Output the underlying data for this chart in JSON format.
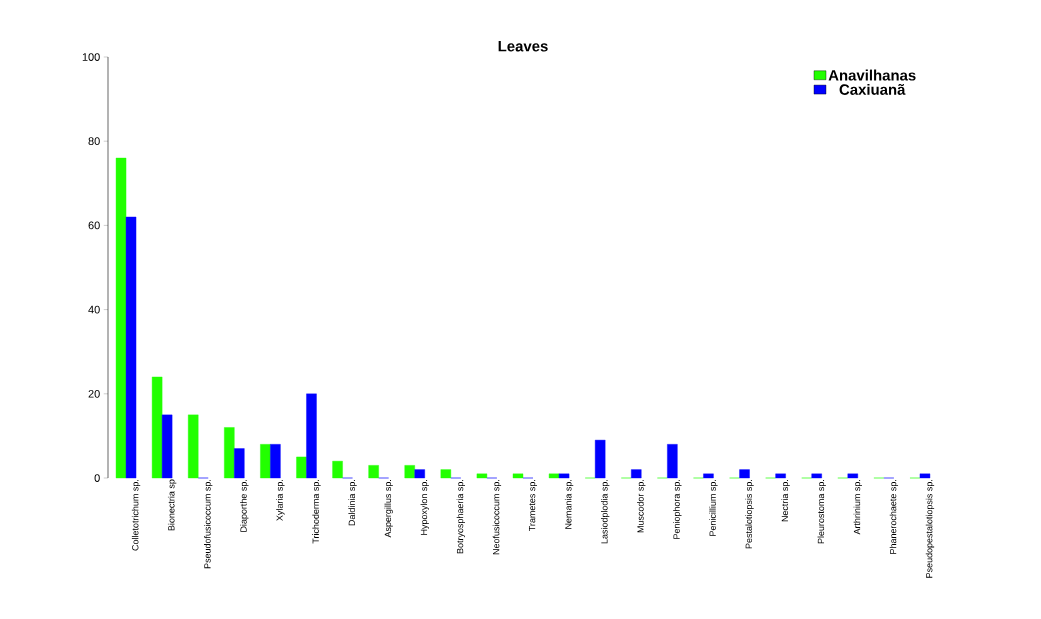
{
  "chart_data": {
    "type": "bar",
    "title": "Leaves",
    "categories": [
      "Colletotrichum sp.",
      "Bionectria sp",
      "Pseudofusicoccum sp.",
      "Diaporthe sp.",
      "Xylaria sp.",
      "Trichoderma sp.",
      "Daldinia sp.",
      "Aspergillus sp.",
      "Hypoxylon sp.",
      "Botryosphaeria sp.",
      "Neofusicoccum sp.",
      "Trametes sp.",
      "Nemania sp.",
      "Lasiodplodia sp.",
      "Muscodor sp.",
      "Peniophora sp.",
      "Penicillium sp.",
      "Pestalotiopsis sp.",
      "Nectria sp.",
      "Pleurostoma sp.",
      "Arthrinium sp.",
      "Phanerochaete sp.",
      "Pseudopestalotiopsis sp."
    ],
    "series": [
      {
        "name": "Anavilhanas",
        "color": "#22ff00",
        "values": [
          76,
          24,
          15,
          12,
          8,
          5,
          4,
          3,
          3,
          2,
          1,
          1,
          1,
          0,
          0,
          0,
          0,
          0,
          0,
          0,
          0,
          0,
          0
        ]
      },
      {
        "name": "Caxiuanã",
        "color": "#0000ff",
        "values": [
          62,
          15,
          0,
          7,
          8,
          20,
          0,
          0,
          2,
          0,
          0,
          0,
          1,
          9,
          2,
          8,
          1,
          2,
          1,
          1,
          1,
          0,
          1
        ]
      }
    ],
    "ylim": [
      0,
      100
    ],
    "yticks": [
      0,
      20,
      40,
      60,
      80,
      100
    ],
    "legend": "top right",
    "grid": false
  }
}
